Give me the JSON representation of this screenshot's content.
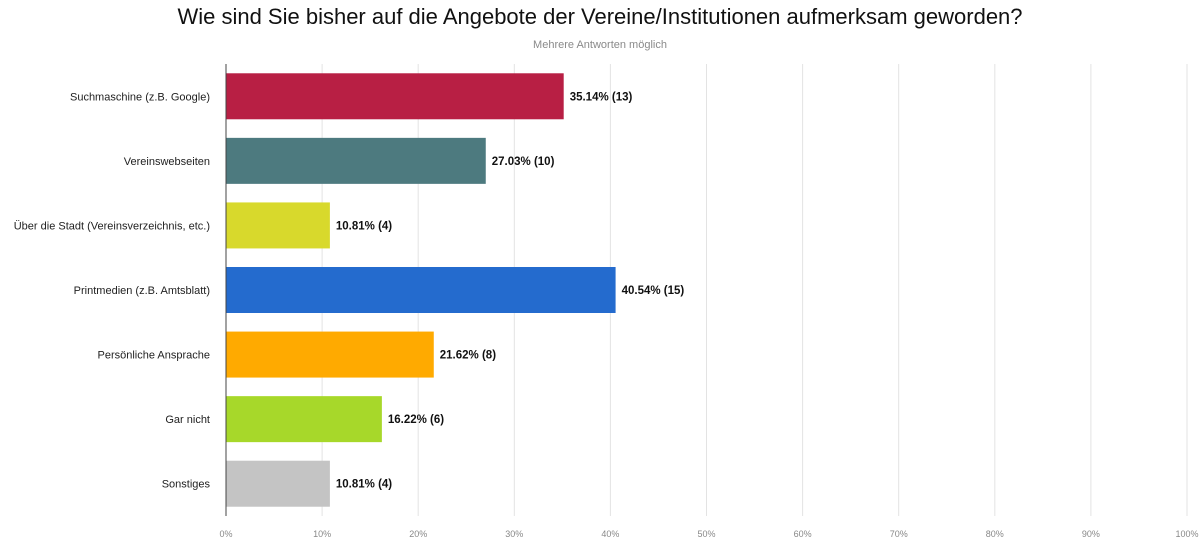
{
  "chart_data": {
    "type": "bar",
    "orientation": "horizontal",
    "title": "Wie sind Sie bisher auf die Angebote der Vereine/Institutionen aufmerksam geworden?",
    "subtitle": "Mehrere Antworten möglich",
    "xlim": [
      0,
      100
    ],
    "x_ticks": [
      "0%",
      "10%",
      "20%",
      "30%",
      "40%",
      "50%",
      "60%",
      "70%",
      "80%",
      "90%",
      "100%"
    ],
    "grid": true,
    "categories": [
      "Suchmaschine (z.B. Google)",
      "Vereinswebseiten",
      "Über die Stadt (Vereinsverzeichnis, etc.)",
      "Printmedien (z.B. Amtsblatt)",
      "Persönliche Ansprache",
      "Gar nicht",
      "Sonstiges"
    ],
    "values": [
      35.14,
      27.03,
      10.81,
      40.54,
      21.62,
      16.22,
      10.81
    ],
    "counts": [
      13,
      10,
      4,
      15,
      8,
      6,
      4
    ],
    "value_labels": [
      "35.14% (13)",
      "27.03% (10)",
      "10.81% (4)",
      "40.54% (15)",
      "21.62% (8)",
      "16.22% (6)",
      "10.81% (4)"
    ],
    "colors": [
      "#b81f44",
      "#4d7a7f",
      "#d8d92c",
      "#246bce",
      "#ffaa00",
      "#a7d82a",
      "#c4c4c4"
    ]
  }
}
